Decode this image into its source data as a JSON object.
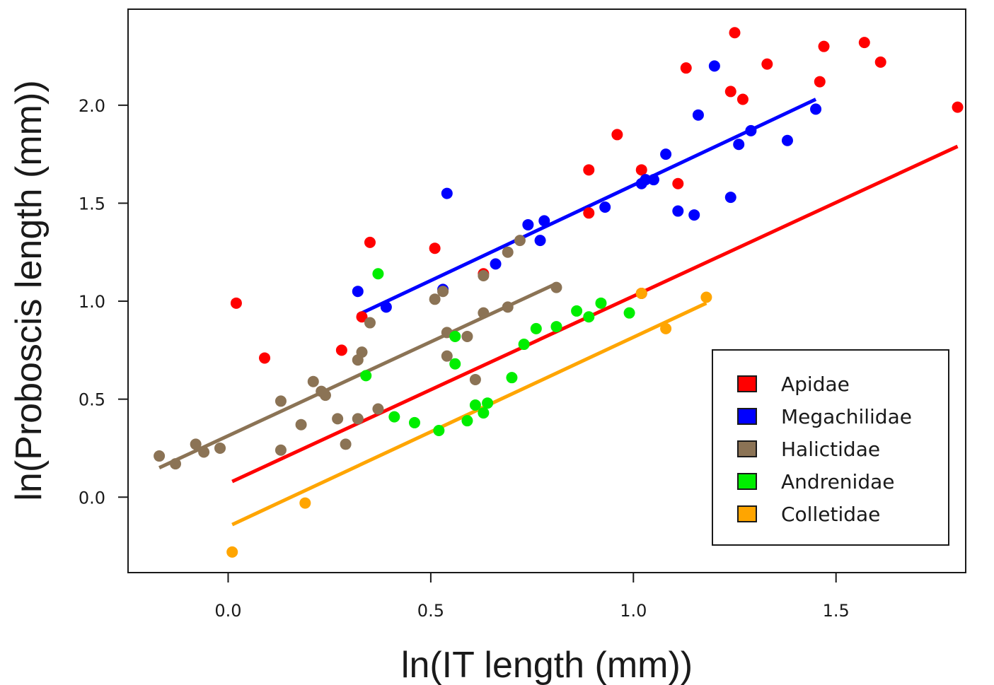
{
  "chart_data": {
    "type": "scatter",
    "xlabel": "ln(IT length (mm))",
    "ylabel": "ln(Proboscis length (mm))",
    "xlim": [
      -0.247,
      1.82
    ],
    "ylim": [
      -0.385,
      2.49
    ],
    "xticks": [
      0.0,
      0.5,
      1.0,
      1.5
    ],
    "yticks": [
      0.0,
      0.5,
      1.0,
      1.5,
      2.0
    ],
    "xtick_labels": [
      "0.0",
      "0.5",
      "1.0",
      "1.5"
    ],
    "ytick_labels": [
      "0.0",
      "0.5",
      "1.0",
      "1.5",
      "2.0"
    ],
    "grid": false,
    "legend_position": "bottom-right",
    "series": [
      {
        "name": "Apidae",
        "color": "#ff0000",
        "points": [
          [
            0.02,
            0.99
          ],
          [
            0.09,
            0.71
          ],
          [
            0.28,
            0.75
          ],
          [
            0.33,
            0.92
          ],
          [
            0.35,
            1.3
          ],
          [
            0.51,
            1.27
          ],
          [
            0.63,
            1.14
          ],
          [
            0.89,
            1.67
          ],
          [
            0.89,
            1.45
          ],
          [
            0.96,
            1.85
          ],
          [
            1.02,
            1.67
          ],
          [
            1.02,
            1.04
          ],
          [
            1.11,
            1.6
          ],
          [
            1.13,
            2.19
          ],
          [
            1.24,
            2.07
          ],
          [
            1.25,
            2.37
          ],
          [
            1.27,
            2.03
          ],
          [
            1.33,
            2.21
          ],
          [
            1.46,
            2.12
          ],
          [
            1.47,
            2.3
          ],
          [
            1.57,
            2.32
          ],
          [
            1.61,
            2.22
          ],
          [
            1.8,
            1.99
          ]
        ],
        "fit_line": [
          [
            0.01,
            0.08
          ],
          [
            1.8,
            1.79
          ]
        ]
      },
      {
        "name": "Megachilidae",
        "color": "#0000ff",
        "points": [
          [
            0.32,
            1.05
          ],
          [
            0.39,
            0.97
          ],
          [
            0.53,
            1.06
          ],
          [
            0.54,
            1.55
          ],
          [
            0.66,
            1.19
          ],
          [
            0.74,
            1.39
          ],
          [
            0.77,
            1.31
          ],
          [
            0.78,
            1.41
          ],
          [
            0.93,
            1.48
          ],
          [
            1.02,
            1.6
          ],
          [
            1.03,
            1.62
          ],
          [
            1.05,
            1.62
          ],
          [
            1.08,
            1.75
          ],
          [
            1.11,
            1.46
          ],
          [
            1.15,
            1.44
          ],
          [
            1.16,
            1.95
          ],
          [
            1.2,
            2.2
          ],
          [
            1.24,
            1.53
          ],
          [
            1.26,
            1.8
          ],
          [
            1.29,
            1.87
          ],
          [
            1.38,
            1.82
          ],
          [
            1.45,
            1.98
          ]
        ],
        "fit_line": [
          [
            0.32,
            0.93
          ],
          [
            1.45,
            2.03
          ]
        ]
      },
      {
        "name": "Halictidae",
        "color": "#8b7355",
        "points": [
          [
            -0.17,
            0.21
          ],
          [
            -0.13,
            0.17
          ],
          [
            -0.08,
            0.27
          ],
          [
            -0.06,
            0.23
          ],
          [
            -0.02,
            0.25
          ],
          [
            0.13,
            0.49
          ],
          [
            0.13,
            0.24
          ],
          [
            0.18,
            0.37
          ],
          [
            0.21,
            0.59
          ],
          [
            0.23,
            0.54
          ],
          [
            0.24,
            0.52
          ],
          [
            0.27,
            0.4
          ],
          [
            0.29,
            0.27
          ],
          [
            0.32,
            0.7
          ],
          [
            0.32,
            0.4
          ],
          [
            0.33,
            0.74
          ],
          [
            0.35,
            0.89
          ],
          [
            0.37,
            0.45
          ],
          [
            0.51,
            1.01
          ],
          [
            0.53,
            1.05
          ],
          [
            0.54,
            0.84
          ],
          [
            0.54,
            0.72
          ],
          [
            0.59,
            0.82
          ],
          [
            0.61,
            0.6
          ],
          [
            0.63,
            0.94
          ],
          [
            0.63,
            1.13
          ],
          [
            0.69,
            0.97
          ],
          [
            0.69,
            1.25
          ],
          [
            0.72,
            1.31
          ],
          [
            0.81,
            1.07
          ]
        ],
        "fit_line": [
          [
            -0.17,
            0.15
          ],
          [
            0.81,
            1.09
          ]
        ]
      },
      {
        "name": "Andrenidae",
        "color": "#00ee00",
        "points": [
          [
            0.34,
            0.62
          ],
          [
            0.37,
            1.14
          ],
          [
            0.41,
            0.41
          ],
          [
            0.46,
            0.38
          ],
          [
            0.52,
            0.34
          ],
          [
            0.56,
            0.82
          ],
          [
            0.56,
            0.68
          ],
          [
            0.59,
            0.39
          ],
          [
            0.61,
            0.47
          ],
          [
            0.63,
            0.43
          ],
          [
            0.64,
            0.48
          ],
          [
            0.7,
            0.61
          ],
          [
            0.73,
            0.78
          ],
          [
            0.76,
            0.86
          ],
          [
            0.81,
            0.87
          ],
          [
            0.86,
            0.95
          ],
          [
            0.89,
            0.92
          ],
          [
            0.92,
            0.99
          ],
          [
            0.99,
            0.94
          ]
        ],
        "fit_line": null
      },
      {
        "name": "Colletidae",
        "color": "#ffa500",
        "points": [
          [
            0.01,
            -0.28
          ],
          [
            0.19,
            -0.03
          ],
          [
            1.02,
            1.04
          ],
          [
            1.08,
            0.86
          ],
          [
            1.18,
            1.02
          ]
        ],
        "fit_line": [
          [
            0.01,
            -0.14
          ],
          [
            1.18,
            0.99
          ]
        ]
      }
    ]
  }
}
